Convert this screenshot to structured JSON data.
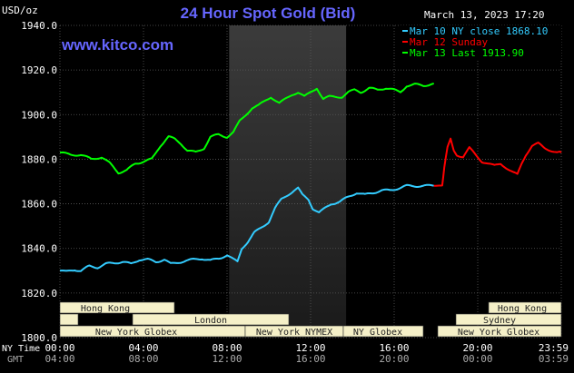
{
  "header": {
    "unit": "USD/oz",
    "title": "24 Hour Spot Gold (Bid)",
    "timestamp": "March 13, 2023 17:20",
    "site": "www.kitco.com"
  },
  "legend": [
    {
      "label": "Mar 10 NY close 1868.10",
      "color": "#33ccff"
    },
    {
      "label": "Mar 12 Sunday",
      "color": "#ff0000"
    },
    {
      "label": "Mar 13 Last 1913.90",
      "color": "#00ff00"
    }
  ],
  "time_axis": {
    "ny_label": "NY Time",
    "gmt_label": "GMT",
    "ny_ticks": [
      "00:00",
      "04:00",
      "08:00",
      "12:00",
      "16:00",
      "20:00",
      "23:59"
    ],
    "gmt_ticks": [
      "04:00",
      "08:00",
      "12:00",
      "16:00",
      "20:00",
      "00:00",
      "03:59"
    ]
  },
  "sessions": {
    "hong_kong_1": "Hong Kong",
    "london": "London",
    "new_york_globex_1": "New York Globex",
    "new_york_nymex": "New York NYMEX",
    "ny_globex": "NY Globex",
    "hong_kong_2": "Hong Kong",
    "sydney": "Sydney",
    "new_york_globex_2": "New York Globex"
  },
  "chart_data": {
    "type": "line",
    "title": "24 Hour Spot Gold (Bid)",
    "ylabel": "USD/oz",
    "xlabel": "NY Time",
    "x_range_hours": [
      0,
      24
    ],
    "ylim": [
      1800,
      1940
    ],
    "yticks": [
      1800,
      1820,
      1840,
      1860,
      1880,
      1900,
      1920,
      1940
    ],
    "grid": true,
    "legend_position": "top-right",
    "series": [
      {
        "name": "Mar 10 NY close 1868.10",
        "color": "#33ccff",
        "points": [
          [
            0,
            1830
          ],
          [
            0.3,
            1829.5
          ],
          [
            0.7,
            1830.5
          ],
          [
            1.0,
            1830
          ],
          [
            1.4,
            1832
          ],
          [
            1.8,
            1831.5
          ],
          [
            2.2,
            1833
          ],
          [
            2.6,
            1833.5
          ],
          [
            3.0,
            1834
          ],
          [
            3.4,
            1833
          ],
          [
            3.8,
            1835
          ],
          [
            4.2,
            1835
          ],
          [
            4.6,
            1834
          ],
          [
            5.0,
            1835
          ],
          [
            5.3,
            1833
          ],
          [
            5.6,
            1833.5
          ],
          [
            6.0,
            1834.5
          ],
          [
            6.4,
            1835
          ],
          [
            6.8,
            1835.5
          ],
          [
            7.2,
            1834.5
          ],
          [
            7.6,
            1835.5
          ],
          [
            8.0,
            1837
          ],
          [
            8.3,
            1835
          ],
          [
            8.5,
            1834
          ],
          [
            8.7,
            1840
          ],
          [
            9.0,
            1843
          ],
          [
            9.3,
            1847
          ],
          [
            9.6,
            1849
          ],
          [
            10.0,
            1852
          ],
          [
            10.3,
            1858
          ],
          [
            10.6,
            1862
          ],
          [
            10.9,
            1864
          ],
          [
            11.2,
            1866
          ],
          [
            11.4,
            1867
          ],
          [
            11.6,
            1864
          ],
          [
            11.9,
            1862
          ],
          [
            12.1,
            1858
          ],
          [
            12.4,
            1856
          ],
          [
            12.7,
            1858
          ],
          [
            13.0,
            1860
          ],
          [
            13.4,
            1861
          ],
          [
            13.8,
            1863
          ],
          [
            14.2,
            1865
          ],
          [
            14.6,
            1864
          ],
          [
            15.0,
            1865
          ],
          [
            15.4,
            1866
          ],
          [
            15.8,
            1866
          ],
          [
            16.2,
            1867
          ],
          [
            16.6,
            1868
          ],
          [
            17.0,
            1868
          ],
          [
            17.4,
            1868
          ],
          [
            17.9,
            1868.1
          ]
        ]
      },
      {
        "name": "Mar 12 Sunday",
        "color": "#ff0000",
        "points": [
          [
            17.9,
            1868.1
          ],
          [
            18.0,
            1868.1
          ],
          [
            18.3,
            1868.2
          ],
          [
            18.4,
            1876
          ],
          [
            18.55,
            1885
          ],
          [
            18.7,
            1889
          ],
          [
            18.85,
            1884
          ],
          [
            19.0,
            1882
          ],
          [
            19.3,
            1881
          ],
          [
            19.6,
            1885
          ],
          [
            19.9,
            1882
          ],
          [
            20.2,
            1879
          ],
          [
            20.5,
            1878
          ],
          [
            20.8,
            1877
          ],
          [
            21.1,
            1878
          ],
          [
            21.4,
            1876
          ],
          [
            21.7,
            1874
          ],
          [
            21.9,
            1873
          ],
          [
            22.1,
            1878
          ],
          [
            22.3,
            1882
          ],
          [
            22.6,
            1886
          ],
          [
            22.9,
            1887
          ],
          [
            23.2,
            1885
          ],
          [
            23.5,
            1884
          ],
          [
            23.8,
            1883
          ],
          [
            24.0,
            1883
          ]
        ]
      },
      {
        "name": "Mar 13 Last 1913.90",
        "color": "#00ff00",
        "points": [
          [
            0,
            1883
          ],
          [
            0.5,
            1882
          ],
          [
            1.0,
            1882
          ],
          [
            1.5,
            1880
          ],
          [
            2.0,
            1881
          ],
          [
            2.4,
            1878
          ],
          [
            2.8,
            1874
          ],
          [
            3.2,
            1875
          ],
          [
            3.6,
            1878
          ],
          [
            4.0,
            1879
          ],
          [
            4.4,
            1880
          ],
          [
            4.8,
            1886
          ],
          [
            5.2,
            1890
          ],
          [
            5.5,
            1889
          ],
          [
            5.8,
            1887
          ],
          [
            6.1,
            1884
          ],
          [
            6.5,
            1883
          ],
          [
            6.9,
            1885
          ],
          [
            7.2,
            1890
          ],
          [
            7.6,
            1891
          ],
          [
            8.0,
            1890
          ],
          [
            8.3,
            1892
          ],
          [
            8.6,
            1897
          ],
          [
            8.9,
            1900
          ],
          [
            9.2,
            1903
          ],
          [
            9.5,
            1904
          ],
          [
            9.8,
            1906
          ],
          [
            10.1,
            1908
          ],
          [
            10.5,
            1905
          ],
          [
            10.8,
            1907
          ],
          [
            11.1,
            1909
          ],
          [
            11.4,
            1910
          ],
          [
            11.7,
            1908
          ],
          [
            12.0,
            1910
          ],
          [
            12.3,
            1912
          ],
          [
            12.6,
            1907
          ],
          [
            12.9,
            1908
          ],
          [
            13.2,
            1908
          ],
          [
            13.5,
            1908
          ],
          [
            13.8,
            1910
          ],
          [
            14.1,
            1911
          ],
          [
            14.4,
            1910
          ],
          [
            14.8,
            1912
          ],
          [
            15.2,
            1911
          ],
          [
            15.6,
            1912
          ],
          [
            16.0,
            1911
          ],
          [
            16.3,
            1910
          ],
          [
            16.6,
            1913
          ],
          [
            17.0,
            1913.5
          ],
          [
            17.4,
            1913
          ],
          [
            17.9,
            1914
          ]
        ]
      }
    ]
  }
}
